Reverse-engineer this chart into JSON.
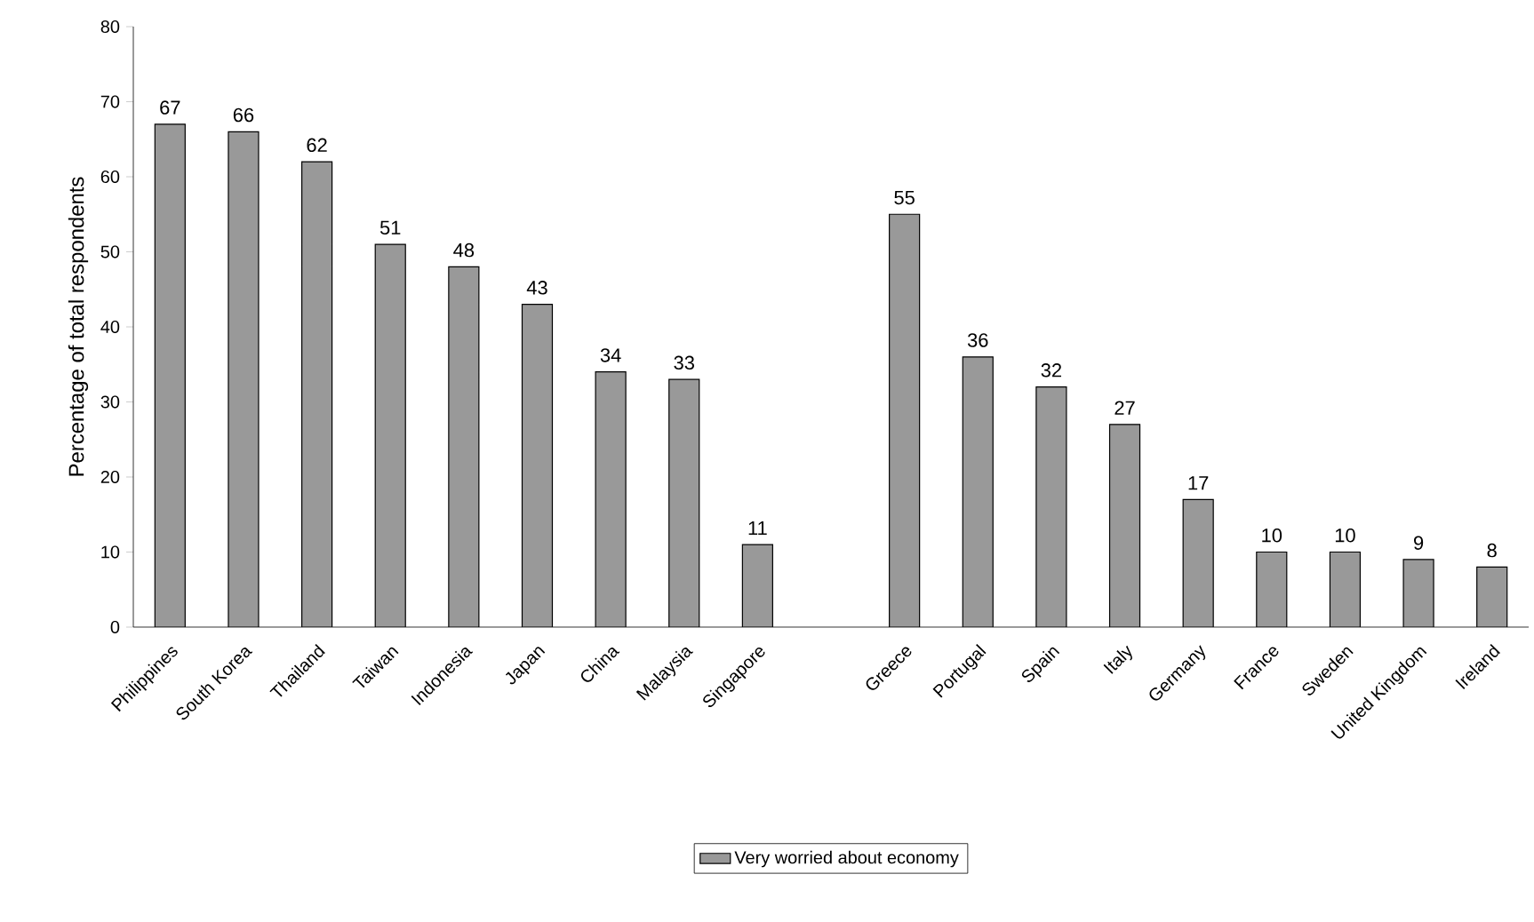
{
  "chart_data": {
    "type": "bar",
    "ylabel": "Percentage of total respondents",
    "categories": [
      "Philippines",
      "South Korea",
      "Thailand",
      "Taiwan",
      "Indonesia",
      "Japan",
      "China",
      "Malaysia",
      "Singapore",
      null,
      "Greece",
      "Portugal",
      "Spain",
      "Italy",
      "Germany",
      "France",
      "Sweden",
      "United Kingdom",
      "Ireland"
    ],
    "series": [
      {
        "name": "Very worried about economy",
        "color": "#999999",
        "values": [
          67,
          66,
          62,
          51,
          48,
          43,
          34,
          33,
          11,
          null,
          55,
          36,
          32,
          27,
          17,
          10,
          10,
          9,
          8
        ]
      }
    ],
    "ylim": [
      0,
      80
    ],
    "yticks": [
      0,
      10,
      20,
      30,
      40,
      50,
      60,
      70,
      80
    ],
    "data_labels": true,
    "legend": "bottom"
  }
}
